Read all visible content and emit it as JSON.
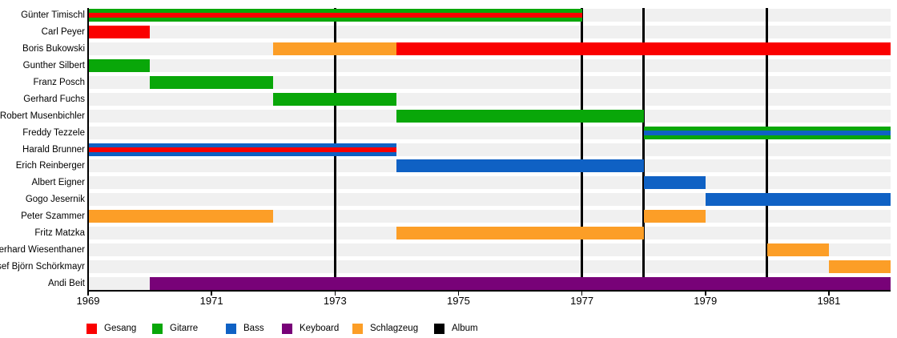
{
  "chart_data": {
    "type": "timeline",
    "description": "Band members timeline (Gantt-style) with instrument roles and album release markers",
    "x_axis": {
      "min": 1969,
      "max": 1982,
      "ticks": [
        1969,
        1971,
        1973,
        1975,
        1977,
        1979,
        1981
      ]
    },
    "album_years": [
      1973,
      1977,
      1978,
      1980
    ],
    "colors": {
      "Gesang": "#fa0000",
      "Gitarre": "#09a709",
      "Bass": "#0f61c4",
      "Keyboard": "#780278",
      "Schlagzeug": "#fc9e27",
      "Album": "#000000",
      "track": "#f0f0f0"
    },
    "members": [
      {
        "name": "Günter Timischl",
        "bars": [
          {
            "start": 1969,
            "end": 1977,
            "role": "Gitarre",
            "overlay_role": "Gesang"
          }
        ]
      },
      {
        "name": "Carl Peyer",
        "bars": [
          {
            "start": 1969,
            "end": 1970,
            "role": "Gesang"
          }
        ]
      },
      {
        "name": "Boris Bukowski",
        "bars": [
          {
            "start": 1972,
            "end": 1974,
            "role": "Schlagzeug"
          },
          {
            "start": 1974,
            "end": 1982,
            "role": "Gesang"
          }
        ]
      },
      {
        "name": "Gunther Silbert",
        "bars": [
          {
            "start": 1969,
            "end": 1970,
            "role": "Gitarre"
          }
        ]
      },
      {
        "name": "Franz Posch",
        "bars": [
          {
            "start": 1970,
            "end": 1972,
            "role": "Gitarre"
          }
        ]
      },
      {
        "name": "Gerhard Fuchs",
        "bars": [
          {
            "start": 1972,
            "end": 1974,
            "role": "Gitarre"
          }
        ]
      },
      {
        "name": "Robert Musenbichler",
        "bars": [
          {
            "start": 1974,
            "end": 1978,
            "role": "Gitarre"
          }
        ]
      },
      {
        "name": "Freddy Tezzele",
        "bars": [
          {
            "start": 1978,
            "end": 1982,
            "role": "Gitarre",
            "overlay_role": "Bass"
          }
        ]
      },
      {
        "name": "Harald Brunner",
        "bars": [
          {
            "start": 1969,
            "end": 1974,
            "role": "Bass",
            "overlay_role": "Gesang"
          }
        ]
      },
      {
        "name": "Erich Reinberger",
        "bars": [
          {
            "start": 1974,
            "end": 1978,
            "role": "Bass"
          }
        ]
      },
      {
        "name": "Albert Eigner",
        "bars": [
          {
            "start": 1978,
            "end": 1979,
            "role": "Bass"
          }
        ]
      },
      {
        "name": "Gogo Jesernik",
        "bars": [
          {
            "start": 1979,
            "end": 1982,
            "role": "Bass"
          }
        ]
      },
      {
        "name": "Peter Szammer",
        "bars": [
          {
            "start": 1969,
            "end": 1972,
            "role": "Schlagzeug"
          },
          {
            "start": 1978,
            "end": 1979,
            "role": "Schlagzeug"
          }
        ]
      },
      {
        "name": "Fritz Matzka",
        "bars": [
          {
            "start": 1974,
            "end": 1978,
            "role": "Schlagzeug"
          }
        ]
      },
      {
        "name": "Gerhard Wiesenthaner",
        "bars": [
          {
            "start": 1980,
            "end": 1981,
            "role": "Schlagzeug"
          }
        ]
      },
      {
        "name": "Josef Björn Schörkmayr",
        "bars": [
          {
            "start": 1981,
            "end": 1982,
            "role": "Schlagzeug"
          }
        ]
      },
      {
        "name": "Andi Beit",
        "bars": [
          {
            "start": 1970,
            "end": 1982,
            "role": "Keyboard"
          }
        ]
      }
    ],
    "legend": [
      {
        "label": "Gesang",
        "color_key": "Gesang"
      },
      {
        "label": "Gitarre",
        "color_key": "Gitarre"
      },
      {
        "label": "Bass",
        "color_key": "Bass"
      },
      {
        "label": "Keyboard",
        "color_key": "Keyboard"
      },
      {
        "label": "Schlagzeug",
        "color_key": "Schlagzeug"
      },
      {
        "label": "Album",
        "color_key": "Album"
      }
    ]
  }
}
